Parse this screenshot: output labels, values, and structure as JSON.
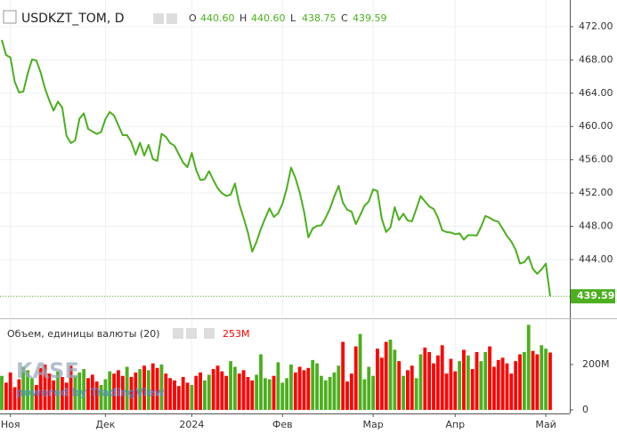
{
  "chart_data": [
    {
      "type": "line",
      "title": "USDKZT_TOM, D",
      "ohlc_labels": [
        "O",
        "H",
        "L",
        "C"
      ],
      "ohlc_values": [
        440.6,
        440.6,
        438.75,
        439.59
      ],
      "ohlc_value_labels": [
        "440.60",
        "440.60",
        "438.75",
        "439.59"
      ],
      "color": "#4caf1e",
      "last_label": "439.59",
      "grid": true,
      "categories": [
        null,
        null,
        "Ноя",
        null,
        null,
        null,
        null,
        null,
        null,
        null,
        null,
        null,
        null,
        null,
        null,
        null,
        null,
        null,
        null,
        null,
        null,
        null,
        null,
        null,
        "Дек",
        null,
        null,
        null,
        null,
        null,
        null,
        null,
        null,
        null,
        null,
        null,
        null,
        null,
        null,
        null,
        null,
        null,
        null,
        null,
        "2024",
        null,
        null,
        null,
        null,
        null,
        null,
        null,
        null,
        null,
        null,
        null,
        null,
        null,
        null,
        null,
        null,
        null,
        null,
        null,
        null,
        "Фев",
        null,
        null,
        null,
        null,
        null,
        null,
        null,
        null,
        null,
        null,
        null,
        null,
        null,
        null,
        null,
        null,
        null,
        null,
        null,
        null,
        "Мар",
        null,
        null,
        null,
        null,
        null,
        null,
        null,
        null,
        null,
        null,
        null,
        null,
        null,
        null,
        null,
        null,
        null,
        null,
        "Апр",
        null,
        null,
        null,
        null,
        null,
        null,
        null,
        null,
        null,
        null,
        null,
        null,
        null,
        null,
        null,
        null,
        null,
        null,
        null,
        null,
        "Май",
        null
      ],
      "values": [
        470.4,
        468.58,
        468.3,
        465.37,
        464.09,
        464.2,
        466.34,
        468.05,
        467.94,
        466.5,
        464.57,
        463.13,
        461.9,
        462.98,
        462.27,
        458.86,
        458.0,
        458.32,
        460.94,
        461.58,
        459.71,
        459.39,
        459.1,
        459.34,
        460.89,
        461.74,
        461.31,
        460.14,
        458.96,
        458.96,
        458.11,
        456.61,
        458.04,
        456.5,
        457.79,
        456.08,
        455.86,
        459.12,
        458.75,
        458.0,
        457.68,
        456.66,
        455.65,
        455.11,
        456.82,
        454.79,
        453.56,
        453.67,
        454.63,
        453.56,
        452.58,
        451.98,
        451.65,
        451.8,
        453.14,
        450.67,
        449.02,
        447.25,
        444.96,
        446.14,
        447.69,
        448.95,
        450.16,
        449.13,
        449.56,
        450.7,
        452.55,
        455.06,
        453.83,
        452.07,
        449.77,
        446.67,
        447.74,
        448.06,
        448.12,
        449.02,
        450.12,
        451.59,
        452.87,
        450.84,
        449.98,
        449.77,
        448.27,
        449.34,
        450.47,
        451.0,
        452.44,
        452.23,
        448.92,
        447.31,
        447.85,
        450.3,
        448.76,
        449.52,
        448.7,
        448.6,
        450.09,
        451.64,
        451.0,
        450.38,
        450.09,
        449.06,
        447.53,
        447.31,
        447.26,
        447.05,
        447.15,
        446.4,
        446.94,
        446.93,
        446.89,
        447.95,
        449.24,
        449.02,
        448.7,
        448.54,
        447.71,
        446.83,
        446.17,
        445.18,
        443.53,
        443.68,
        444.37,
        442.87,
        442.29,
        442.82,
        443.52,
        439.59
      ],
      "ylim": [
        437.05,
        475.2
      ],
      "yticks": [
        {
          "value": 444,
          "label": "444.00"
        },
        {
          "value": 448,
          "label": "448.00"
        },
        {
          "value": 452,
          "label": "452.00"
        },
        {
          "value": 456,
          "label": "456.00"
        },
        {
          "value": 460,
          "label": "460.00"
        },
        {
          "value": 464,
          "label": "464.00"
        },
        {
          "value": 468,
          "label": "468.00"
        },
        {
          "value": 472,
          "label": "472.00"
        }
      ]
    },
    {
      "type": "bar",
      "title": "Объем, единицы валюты (20)",
      "value_label": "253M",
      "up_color": "#4caf1e",
      "down_color": "#ff0000",
      "values": [
        150,
        120,
        165,
        100,
        135,
        190,
        175,
        140,
        110,
        185,
        200,
        160,
        130,
        170,
        145,
        120,
        195,
        150,
        165,
        180,
        140,
        155,
        125,
        110,
        135,
        170,
        160,
        175,
        150,
        190,
        145,
        165,
        180,
        195,
        175,
        205,
        185,
        200,
        160,
        140,
        130,
        105,
        145,
        120,
        110,
        150,
        165,
        130,
        155,
        180,
        195,
        170,
        150,
        215,
        190,
        160,
        175,
        145,
        130,
        155,
        245,
        140,
        135,
        150,
        210,
        120,
        140,
        200,
        165,
        190,
        175,
        185,
        220,
        205,
        150,
        130,
        145,
        165,
        195,
        300,
        125,
        160,
        280,
        335,
        135,
        190,
        150,
        270,
        230,
        300,
        310,
        265,
        215,
        150,
        175,
        195,
        140,
        245,
        275,
        255,
        205,
        240,
        285,
        160,
        225,
        170,
        215,
        265,
        240,
        180,
        255,
        215,
        255,
        280,
        190,
        220,
        230,
        205,
        160,
        215,
        245,
        255,
        375,
        260,
        245,
        285,
        270,
        253
      ],
      "ylim": [
        0,
        396
      ],
      "yticks": [
        0,
        {
          "value": 200,
          "label": "200M"
        }
      ]
    }
  ],
  "watermark": {
    "logo": "KASE",
    "text": "powered by TradingView"
  }
}
